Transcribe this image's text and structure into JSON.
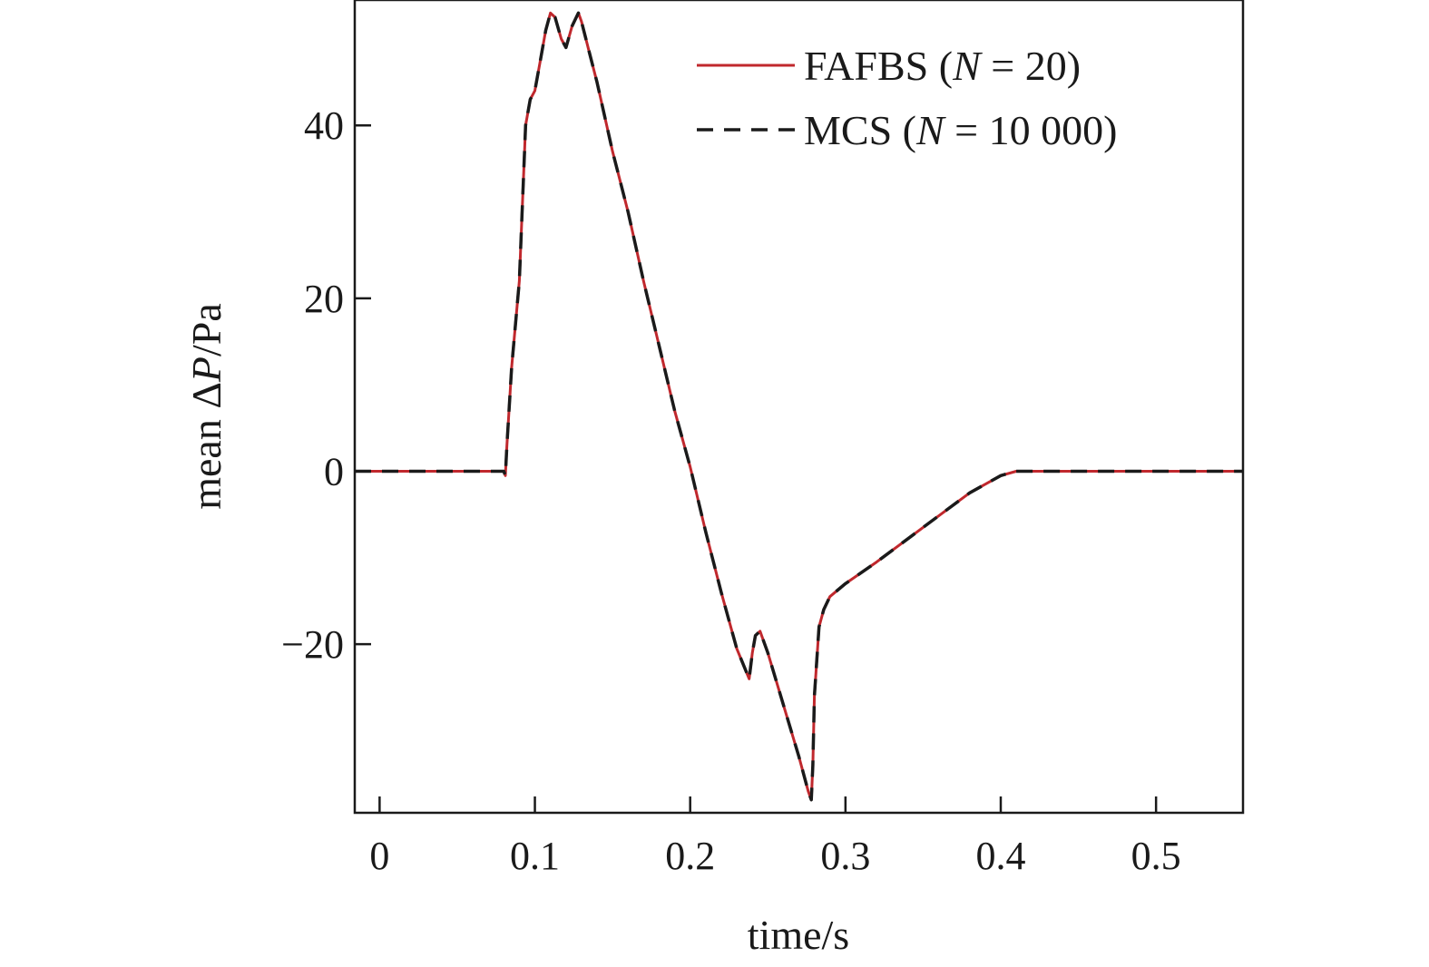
{
  "chart_data": {
    "type": "line",
    "xlabel": "time/s",
    "ylabel_prefix": "mean ΔP",
    "ylabel_italic": "P",
    "ylabel_suffix": "/Pa",
    "xlim": [
      -0.016,
      0.556
    ],
    "ylim": [
      -39.5,
      54.5
    ],
    "xticks": [
      0,
      0.1,
      0.2,
      0.3,
      0.4,
      0.5
    ],
    "xtick_labels": [
      "0",
      "0.1",
      "0.2",
      "0.3",
      "0.4",
      "0.5"
    ],
    "yticks": [
      40,
      20,
      0,
      -20
    ],
    "ytick_labels": [
      "40",
      "20",
      "0",
      "−20"
    ],
    "grid": false,
    "legend_position": "top-right",
    "colors": {
      "fafbs": "#c0282d",
      "mcs": "#1a1a1a",
      "axes": "#1a1a1a"
    },
    "series": [
      {
        "id": "fafbs",
        "legend_prefix": "FAFBS (",
        "legend_italic": "N",
        "legend_suffix": " = 20)",
        "style": "solid"
      },
      {
        "id": "mcs",
        "legend_prefix": "MCS (",
        "legend_italic": "N",
        "legend_suffix": " = 10 000)",
        "style": "dashed"
      }
    ],
    "x": [
      -0.016,
      0.0,
      0.08,
      0.081,
      0.082,
      0.085,
      0.09,
      0.094,
      0.097,
      0.1,
      0.104,
      0.107,
      0.11,
      0.113,
      0.117,
      0.12,
      0.124,
      0.128,
      0.13,
      0.135,
      0.14,
      0.15,
      0.16,
      0.17,
      0.18,
      0.19,
      0.2,
      0.21,
      0.22,
      0.23,
      0.238,
      0.24,
      0.242,
      0.245,
      0.25,
      0.26,
      0.27,
      0.276,
      0.278,
      0.279,
      0.28,
      0.283,
      0.286,
      0.29,
      0.3,
      0.32,
      0.35,
      0.38,
      0.4,
      0.41,
      0.42,
      0.45,
      0.5,
      0.556
    ],
    "y": [
      0,
      0,
      0,
      -0.5,
      3,
      12,
      22,
      40,
      43,
      44,
      48,
      51,
      53,
      52.5,
      50,
      49,
      51.5,
      53,
      52,
      48.5,
      45,
      37,
      30,
      22,
      14.5,
      7,
      0.5,
      -7,
      -14,
      -20.5,
      -24,
      -21,
      -19,
      -18.5,
      -21,
      -27,
      -33,
      -37,
      -38,
      -34,
      -26,
      -18,
      -16,
      -14.5,
      -13,
      -10.5,
      -6.5,
      -2.5,
      -0.5,
      0,
      0,
      0,
      0,
      0
    ]
  }
}
